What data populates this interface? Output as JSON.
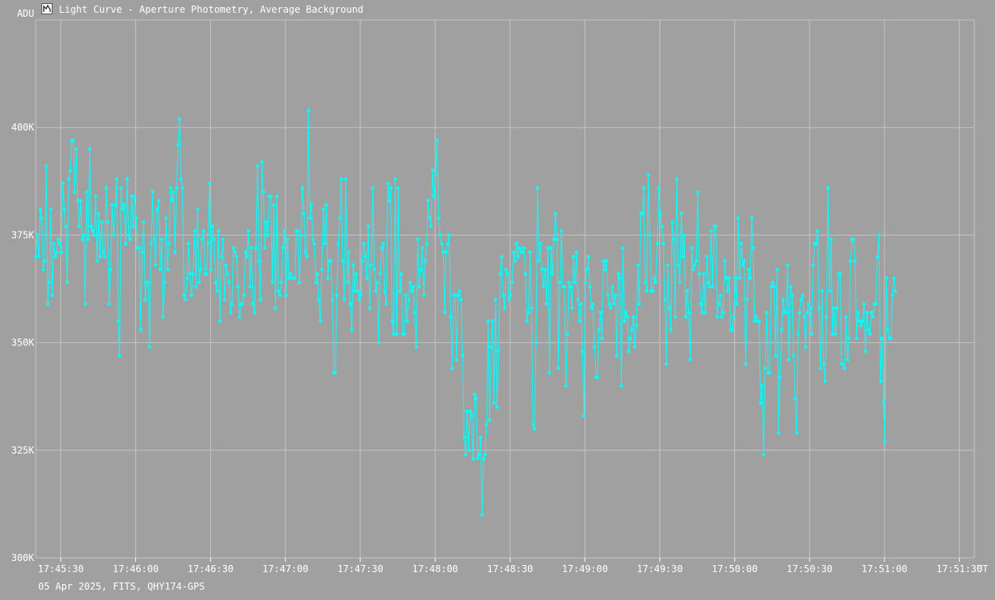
{
  "window": {
    "title": "Light Curve - Aperture Photometry, Average Background",
    "icon": "chart-window-icon"
  },
  "footer": {
    "info": "05 Apr 2025, FITS, QHY174-GPS"
  },
  "colors": {
    "background": "#a0a0a0",
    "grid": "#c4c4c4",
    "series": "#00ffff",
    "text": "#ffffff"
  },
  "chart_data": {
    "type": "line",
    "title": "Light Curve - Aperture Photometry, Average Background",
    "ylabel": "ADU",
    "xlabel": "UT",
    "ylim": [
      300000,
      425000
    ],
    "xlim": [
      "17:45:20",
      "17:51:36"
    ],
    "yticks": [
      300000,
      325000,
      350000,
      375000,
      400000
    ],
    "ytick_labels": [
      "300K",
      "325K",
      "350K",
      "375K",
      "400K"
    ],
    "xtick_labels": [
      "17:45:30",
      "17:46:00",
      "17:46:30",
      "17:47:00",
      "17:47:30",
      "17:48:00",
      "17:48:30",
      "17:49:00",
      "17:49:30",
      "17:50:00",
      "17:50:30",
      "17:51:00",
      "17:51:30"
    ],
    "grid": true,
    "markers": true,
    "sample_interval_s": 0.6,
    "series": [
      {
        "color": "#00ffff",
        "values": [
          370000,
          375000,
          370000,
          381000,
          379000,
          367000,
          369000,
          391000,
          359000,
          364000,
          381000,
          361000,
          373000,
          370000,
          371000,
          374000,
          373000,
          371000,
          387000,
          381000,
          377000,
          364000,
          388000,
          390000,
          397000,
          397000,
          385000,
          395000,
          383000,
          377000,
          383000,
          374000,
          375000,
          359000,
          385000,
          374000,
          395000,
          377000,
          376000,
          375000,
          384000,
          369000,
          380000,
          370000,
          378000,
          371000,
          370000,
          386000,
          378000,
          359000,
          367000,
          382000,
          375000,
          382000,
          388000,
          355000,
          347000,
          386000,
          381000,
          382000,
          373000,
          388000,
          375000,
          374000,
          384000,
          377000,
          384000,
          379000,
          372000,
          372000,
          353000,
          371000,
          378000,
          360000,
          364000,
          364000,
          349000,
          373000,
          385000,
          374000,
          368000,
          381000,
          383000,
          367000,
          374000,
          356000,
          364000,
          379000,
          367000,
          373000,
          386000,
          383000,
          385000,
          371000,
          386000,
          396000,
          402000,
          388000,
          386000,
          361000,
          360000,
          365000,
          373000,
          366000,
          361000,
          366000,
          376000,
          363000,
          381000,
          364000,
          367000,
          374000,
          376000,
          366000,
          366000,
          373000,
          387000,
          367000,
          377000,
          374000,
          364000,
          362000,
          376000,
          355000,
          370000,
          374000,
          360000,
          368000,
          366000,
          364000,
          357000,
          359000,
          372000,
          371000,
          370000,
          363000,
          356000,
          359000,
          359000,
          361000,
          371000,
          370000,
          376000,
          363000,
          372000,
          359000,
          357000,
          372000,
          391000,
          369000,
          360000,
          392000,
          385000,
          372000,
          378000,
          375000,
          384000,
          384000,
          364000,
          382000,
          358000,
          384000,
          362000,
          361000,
          364000,
          372000,
          376000,
          361000,
          374000,
          365000,
          366000,
          365000,
          365000,
          365000,
          376000,
          376000,
          364000,
          375000,
          386000,
          380000,
          371000,
          370000,
          404000,
          379000,
          382000,
          374000,
          373000,
          364000,
          366000,
          360000,
          355000,
          367000,
          381000,
          373000,
          382000,
          365000,
          369000,
          369000,
          360000,
          343000,
          343000,
          361000,
          373000,
          379000,
          388000,
          369000,
          360000,
          388000,
          364000,
          371000,
          359000,
          353000,
          368000,
          362000,
          366000,
          362000,
          360000,
          361000,
          369000,
          373000,
          370000,
          365000,
          377000,
          358000,
          368000,
          386000,
          367000,
          362000,
          364000,
          350000,
          366000,
          372000,
          373000,
          362000,
          359000,
          387000,
          383000,
          386000,
          355000,
          352000,
          388000,
          352000,
          386000,
          362000,
          366000,
          352000,
          352000,
          361000,
          355000,
          360000,
          364000,
          362000,
          363000,
          357000,
          349000,
          374000,
          363000,
          367000,
          372000,
          361000,
          369000,
          373000,
          383000,
          379000,
          377000,
          390000,
          384000,
          389000,
          397000,
          379000,
          375000,
          373000,
          371000,
          357000,
          371000,
          373000,
          375000,
          356000,
          344000,
          361000,
          361000,
          346000,
          361000,
          362000,
          360000,
          347000,
          328000,
          324000,
          334000,
          325000,
          334000,
          333000,
          323000,
          338000,
          337000,
          323000,
          324000,
          328000,
          310000,
          323000,
          324000,
          331000,
          355000,
          332000,
          349000,
          355000,
          336000,
          360000,
          335000,
          348000,
          366000,
          370000,
          361000,
          358000,
          367000,
          366000,
          360000,
          361000,
          364000,
          371000,
          369000,
          373000,
          370000,
          372000,
          371000,
          371000,
          372000,
          366000,
          355000,
          357000,
          371000,
          358000,
          331000,
          330000,
          350000,
          386000,
          369000,
          373000,
          367000,
          363000,
          367000,
          359000,
          372000,
          343000,
          372000,
          366000,
          374000,
          380000,
          374000,
          344000,
          364000,
          376000,
          363000,
          363000,
          340000,
          352000,
          364000,
          363000,
          358000,
          370000,
          364000,
          371000,
          360000,
          355000,
          359000,
          348000,
          333000,
          364000,
          367000,
          370000,
          363000,
          358000,
          359000,
          349000,
          342000,
          342000,
          353000,
          357000,
          351000,
          369000,
          367000,
          369000,
          361000,
          359000,
          358000,
          363000,
          359000,
          361000,
          347000,
          366000,
          365000,
          340000,
          372000,
          355000,
          357000,
          356000,
          348000,
          351000,
          353000,
          356000,
          349000,
          354000,
          368000,
          359000,
          380000,
          380000,
          386000,
          364000,
          362000,
          389000,
          375000,
          362000,
          362000,
          365000,
          364000,
          373000,
          386000,
          380000,
          377000,
          373000,
          360000,
          345000,
          368000,
          358000,
          353000,
          378000,
          374000,
          356000,
          388000,
          368000,
          364000,
          380000,
          370000,
          375000,
          356000,
          362000,
          357000,
          346000,
          372000,
          367000,
          368000,
          369000,
          385000,
          366000,
          359000,
          357000,
          366000,
          357000,
          370000,
          364000,
          363000,
          376000,
          363000,
          377000,
          377000,
          356000,
          359000,
          361000,
          356000,
          357000,
          369000,
          365000,
          362000,
          365000,
          353000,
          353000,
          356000,
          365000,
          359000,
          379000,
          365000,
          373000,
          368000,
          369000,
          345000,
          360000,
          367000,
          365000,
          379000,
          372000,
          355000,
          356000,
          355000,
          355000,
          336000,
          340000,
          324000,
          344000,
          357000,
          343000,
          343000,
          363000,
          364000,
          363000,
          347000,
          367000,
          329000,
          342000,
          353000,
          360000,
          357000,
          357000,
          368000,
          346000,
          363000,
          361000,
          347000,
          337000,
          329000,
          352000,
          357000,
          360000,
          361000,
          356000,
          349000,
          357000,
          359000,
          358000,
          352000,
          368000,
          373000,
          373000,
          376000,
          358000,
          344000,
          362000,
          345000,
          341000,
          356000,
          386000,
          362000,
          374000,
          352000,
          358000,
          352000,
          358000,
          366000,
          366000,
          345000,
          345000,
          344000,
          356000,
          346000,
          351000,
          369000,
          374000,
          374000,
          369000,
          351000,
          357000,
          355000,
          354000,
          355000,
          359000,
          348000,
          357000,
          353000,
          352000,
          357000,
          356000,
          359000,
          359000,
          370000,
          375000,
          341000,
          351000,
          336000,
          327000,
          365000,
          353000,
          351000,
          351000,
          361000,
          365000,
          362000
        ]
      }
    ]
  }
}
